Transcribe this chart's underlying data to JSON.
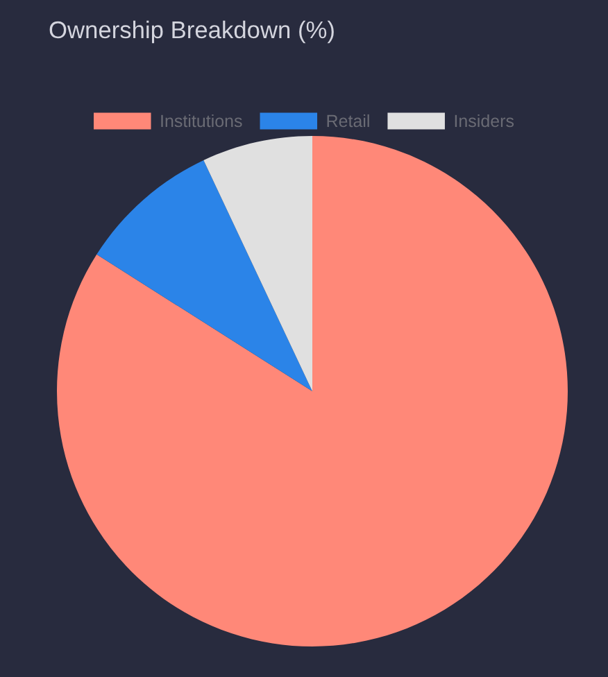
{
  "chart_data": {
    "type": "pie",
    "title": "Ownership Breakdown (%)",
    "categories": [
      "Institutions",
      "Retail",
      "Insiders"
    ],
    "values": [
      84,
      9,
      7
    ],
    "colors": [
      "#ff8878",
      "#2b84e8",
      "#e0e0e0"
    ],
    "legend": "top"
  }
}
